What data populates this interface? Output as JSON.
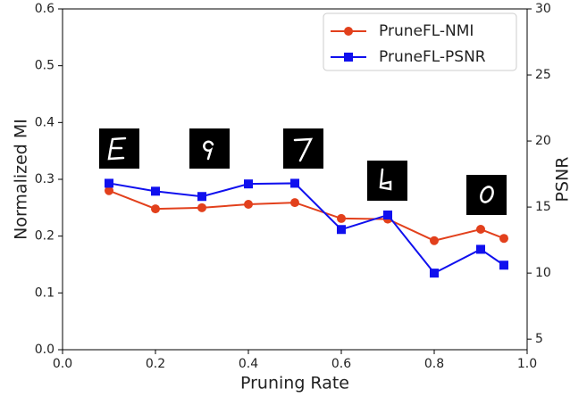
{
  "chart_data": {
    "type": "line",
    "x_label": "Pruning Rate",
    "y_label": "Normalized MI",
    "y2_label": "PSNR",
    "x": [
      0.1,
      0.2,
      0.3,
      0.4,
      0.5,
      0.6,
      0.7,
      0.8,
      0.9,
      0.95
    ],
    "series": [
      {
        "name": "PruneFL-NMI",
        "color": "#e2401c",
        "marker": "circle",
        "values": [
          0.28,
          0.248,
          0.25,
          0.256,
          0.259,
          0.231,
          0.23,
          0.192,
          0.212,
          0.196
        ]
      },
      {
        "name": "PruneFL-PSNR",
        "color": "#1010ee",
        "marker": "square",
        "axis": "y2",
        "values": [
          16.8,
          16.2,
          15.8,
          16.75,
          16.8,
          13.3,
          14.4,
          10.0,
          11.8,
          10.6
        ]
      }
    ],
    "xlim": [
      0,
      1
    ],
    "xticks": [
      {
        "value": 0,
        "label": "0.0"
      },
      {
        "value": 0.2,
        "label": "0.2"
      },
      {
        "value": 0.4,
        "label": "0.4"
      },
      {
        "value": 0.6,
        "label": "0.6"
      },
      {
        "value": 0.8,
        "label": "0.8"
      },
      {
        "value": 1,
        "label": "1.0"
      }
    ],
    "ylim": [
      0,
      0.6
    ],
    "yticks": [
      {
        "value": 0,
        "label": "0.0"
      },
      {
        "value": 0.1,
        "label": "0.1"
      },
      {
        "value": 0.2,
        "label": "0.2"
      },
      {
        "value": 0.3,
        "label": "0.3"
      },
      {
        "value": 0.4,
        "label": "0.4"
      },
      {
        "value": 0.5,
        "label": "0.5"
      },
      {
        "value": 0.6,
        "label": "0.6"
      }
    ],
    "y2lim": [
      4.2,
      30
    ],
    "y2ticks": [
      5,
      10,
      15,
      20,
      25,
      30
    ],
    "legend": "upper right"
  }
}
